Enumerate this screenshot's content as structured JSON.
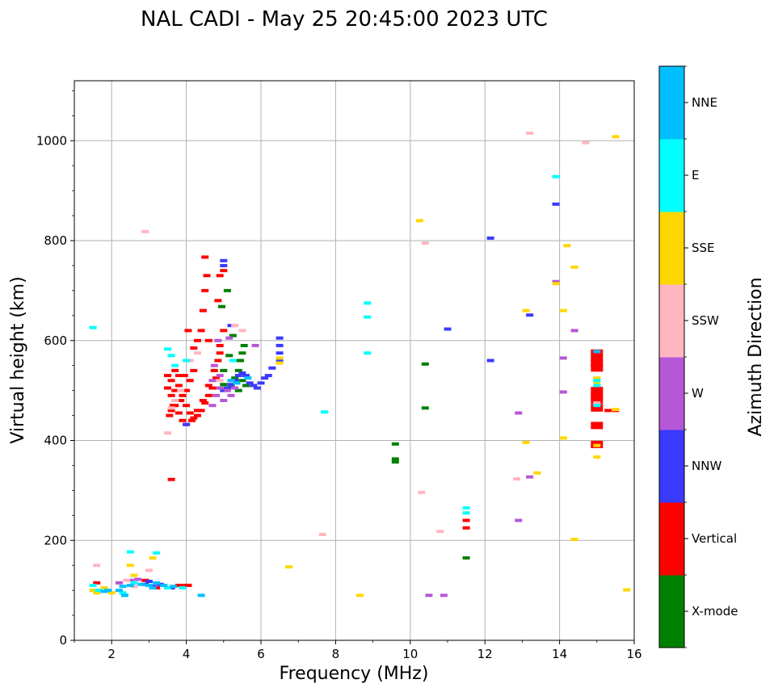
{
  "chart_data": {
    "type": "scatter",
    "title": "NAL CADI - May 25 20:45:00 2023 UTC",
    "xlabel": "Frequency (MHz)",
    "ylabel": "Virtual height (km)",
    "xlim": [
      1,
      16
    ],
    "ylim": [
      0,
      1120
    ],
    "x_ticks": [
      2,
      4,
      6,
      8,
      10,
      12,
      14,
      16
    ],
    "y_ticks": [
      0,
      200,
      400,
      600,
      800,
      1000
    ],
    "grid": true,
    "colorbar": {
      "label": "Azimuth Direction",
      "categories": [
        "X-mode",
        "Vertical",
        "NNW",
        "W",
        "SSW",
        "SSE",
        "E",
        "NNE"
      ],
      "colors": [
        "#008000",
        "#ff0000",
        "#3a3aff",
        "#b657d6",
        "#ffb6c1",
        "#ffd700",
        "#00ffff",
        "#00bfff"
      ]
    },
    "series": [
      {
        "name": "X-mode",
        "points": [
          [
            4.9,
            505
          ],
          [
            5.0,
            512
          ],
          [
            5.2,
            508
          ],
          [
            5.3,
            525
          ],
          [
            5.4,
            540
          ],
          [
            5.45,
            560
          ],
          [
            5.5,
            575
          ],
          [
            5.3,
            560
          ],
          [
            5.55,
            590
          ],
          [
            5.6,
            510
          ],
          [
            4.95,
            668
          ],
          [
            5.1,
            700
          ],
          [
            5.0,
            540
          ],
          [
            5.25,
            610
          ],
          [
            9.6,
            393
          ],
          [
            9.6,
            363
          ],
          [
            9.6,
            357
          ],
          [
            10.4,
            553
          ],
          [
            10.4,
            465
          ],
          [
            11.5,
            165
          ],
          [
            5.5,
            520
          ],
          [
            5.15,
            570
          ],
          [
            5.4,
            500
          ]
        ]
      },
      {
        "name": "Vertical",
        "points": [
          [
            3.6,
            520
          ],
          [
            3.7,
            540
          ],
          [
            3.8,
            510
          ],
          [
            3.9,
            490
          ],
          [
            4.0,
            470
          ],
          [
            4.1,
            455
          ],
          [
            4.2,
            445
          ],
          [
            4.3,
            450
          ],
          [
            4.4,
            460
          ],
          [
            4.5,
            475
          ],
          [
            4.6,
            490
          ],
          [
            4.7,
            505
          ],
          [
            4.8,
            525
          ],
          [
            4.85,
            560
          ],
          [
            4.9,
            590
          ],
          [
            3.5,
            505
          ],
          [
            3.6,
            490
          ],
          [
            3.7,
            470
          ],
          [
            3.8,
            455
          ],
          [
            3.9,
            440
          ],
          [
            4.0,
            432
          ],
          [
            4.15,
            440
          ],
          [
            4.3,
            460
          ],
          [
            4.45,
            480
          ],
          [
            4.6,
            510
          ],
          [
            4.75,
            540
          ],
          [
            4.9,
            575
          ],
          [
            3.5,
            530
          ],
          [
            3.7,
            500
          ],
          [
            3.85,
            480
          ],
          [
            4.0,
            500
          ],
          [
            4.1,
            520
          ],
          [
            4.2,
            540
          ],
          [
            4.3,
            600
          ],
          [
            4.4,
            620
          ],
          [
            4.45,
            660
          ],
          [
            4.5,
            700
          ],
          [
            4.55,
            730
          ],
          [
            4.6,
            600
          ],
          [
            3.55,
            450
          ],
          [
            3.65,
            470
          ],
          [
            3.8,
            530
          ],
          [
            3.95,
            530
          ],
          [
            4.05,
            620
          ],
          [
            4.5,
            767
          ],
          [
            4.85,
            680
          ],
          [
            4.9,
            730
          ],
          [
            5.0,
            740
          ],
          [
            5.0,
            620
          ],
          [
            4.2,
            585
          ],
          [
            3.6,
            460
          ],
          [
            3.6,
            322
          ],
          [
            4.0,
            110
          ],
          [
            4.05,
            110
          ],
          [
            3.8,
            110
          ],
          [
            15.0,
            575
          ],
          [
            15.0,
            565
          ],
          [
            15.0,
            555
          ],
          [
            15.0,
            545
          ],
          [
            15.0,
            500
          ],
          [
            15.0,
            490
          ],
          [
            15.0,
            480
          ],
          [
            15.0,
            465
          ],
          [
            15.0,
            430
          ],
          [
            15.0,
            392
          ],
          [
            15.3,
            460
          ],
          [
            15.5,
            460
          ],
          [
            11.5,
            240
          ],
          [
            11.5,
            225
          ],
          [
            1.6,
            115
          ],
          [
            2.9,
            120
          ],
          [
            3.2,
            105
          ]
        ]
      },
      {
        "name": "NNW",
        "points": [
          [
            5.0,
            500
          ],
          [
            5.1,
            505
          ],
          [
            5.2,
            512
          ],
          [
            5.3,
            520
          ],
          [
            5.4,
            530
          ],
          [
            5.5,
            535
          ],
          [
            5.6,
            530
          ],
          [
            5.7,
            515
          ],
          [
            5.8,
            510
          ],
          [
            5.9,
            505
          ],
          [
            6.0,
            515
          ],
          [
            6.1,
            525
          ],
          [
            6.2,
            530
          ],
          [
            6.3,
            545
          ],
          [
            6.5,
            560
          ],
          [
            6.5,
            575
          ],
          [
            6.5,
            590
          ],
          [
            6.5,
            605
          ],
          [
            5.0,
            760
          ],
          [
            5.0,
            750
          ],
          [
            5.2,
            630
          ],
          [
            4.0,
            432
          ],
          [
            11.0,
            623
          ],
          [
            12.15,
            805
          ],
          [
            12.15,
            560
          ],
          [
            13.9,
            873
          ],
          [
            13.2,
            651
          ],
          [
            3.0,
            118
          ],
          [
            2.9,
            112
          ],
          [
            3.1,
            108
          ],
          [
            3.3,
            112
          ],
          [
            3.6,
            105
          ]
        ]
      },
      {
        "name": "W",
        "points": [
          [
            4.7,
            470
          ],
          [
            4.8,
            490
          ],
          [
            4.9,
            505
          ],
          [
            5.0,
            480
          ],
          [
            5.1,
            500
          ],
          [
            5.2,
            490
          ],
          [
            4.7,
            520
          ],
          [
            4.75,
            550
          ],
          [
            4.85,
            600
          ],
          [
            5.2,
            520
          ],
          [
            5.3,
            505
          ],
          [
            4.9,
            530
          ],
          [
            5.15,
            605
          ],
          [
            5.85,
            590
          ],
          [
            13.9,
            718
          ],
          [
            14.1,
            565
          ],
          [
            14.1,
            497
          ],
          [
            14.4,
            620
          ],
          [
            12.9,
            455
          ],
          [
            12.9,
            240
          ],
          [
            13.2,
            327
          ],
          [
            10.5,
            90
          ],
          [
            10.9,
            90
          ],
          [
            2.2,
            115
          ],
          [
            2.5,
            120
          ],
          [
            2.7,
            122
          ]
        ]
      },
      {
        "name": "SSW",
        "points": [
          [
            3.5,
            415
          ],
          [
            3.6,
            465
          ],
          [
            3.7,
            480
          ],
          [
            3.85,
            500
          ],
          [
            4.1,
            560
          ],
          [
            4.3,
            575
          ],
          [
            4.9,
            520
          ],
          [
            5.3,
            630
          ],
          [
            5.5,
            620
          ],
          [
            2.9,
            818
          ],
          [
            10.4,
            795
          ],
          [
            10.3,
            296
          ],
          [
            10.8,
            218
          ],
          [
            7.65,
            212
          ],
          [
            13.2,
            1015
          ],
          [
            14.7,
            996
          ],
          [
            12.85,
            323
          ],
          [
            1.6,
            150
          ],
          [
            2.4,
            120
          ],
          [
            2.6,
            108
          ],
          [
            3.0,
            140
          ],
          [
            15.0,
            475
          ]
        ]
      },
      {
        "name": "SSE",
        "points": [
          [
            6.5,
            565
          ],
          [
            6.5,
            555
          ],
          [
            13.1,
            660
          ],
          [
            13.9,
            714
          ],
          [
            14.1,
            660
          ],
          [
            14.1,
            405
          ],
          [
            14.2,
            790
          ],
          [
            14.4,
            747
          ],
          [
            13.1,
            396
          ],
          [
            13.4,
            335
          ],
          [
            14.4,
            202
          ],
          [
            15.5,
            1008
          ],
          [
            15.5,
            462
          ],
          [
            15.0,
            525
          ],
          [
            15.0,
            515
          ],
          [
            15.0,
            367
          ],
          [
            15.0,
            390
          ],
          [
            15.8,
            101
          ],
          [
            8.65,
            90
          ],
          [
            6.75,
            147
          ],
          [
            10.25,
            840
          ],
          [
            1.5,
            100
          ],
          [
            1.6,
            95
          ],
          [
            1.8,
            105
          ],
          [
            2.0,
            95
          ],
          [
            2.5,
            150
          ],
          [
            2.6,
            130
          ],
          [
            3.1,
            165
          ]
        ]
      },
      {
        "name": "E",
        "points": [
          [
            3.5,
            583
          ],
          [
            3.6,
            570
          ],
          [
            3.7,
            550
          ],
          [
            4.0,
            560
          ],
          [
            5.25,
            560
          ],
          [
            8.85,
            675
          ],
          [
            8.85,
            647
          ],
          [
            8.85,
            575
          ],
          [
            7.7,
            457
          ],
          [
            13.9,
            928
          ],
          [
            11.5,
            265
          ],
          [
            11.5,
            255
          ],
          [
            15.0,
            520
          ],
          [
            15.0,
            510
          ],
          [
            15.0,
            470
          ],
          [
            1.5,
            626
          ],
          [
            1.5,
            110
          ],
          [
            1.65,
            100
          ],
          [
            2.3,
            95
          ],
          [
            2.6,
            115
          ],
          [
            3.2,
            175
          ],
          [
            2.5,
            177
          ],
          [
            3.5,
            105
          ],
          [
            3.9,
            105
          ]
        ]
      },
      {
        "name": "NNE",
        "points": [
          [
            5.2,
            520
          ],
          [
            5.35,
            515
          ],
          [
            5.65,
            525
          ],
          [
            2.3,
            108
          ],
          [
            2.5,
            110
          ],
          [
            2.8,
            112
          ],
          [
            3.0,
            110
          ],
          [
            3.1,
            105
          ],
          [
            3.2,
            115
          ],
          [
            3.4,
            110
          ],
          [
            3.65,
            108
          ],
          [
            4.4,
            90
          ],
          [
            2.2,
            100
          ],
          [
            1.9,
            100
          ],
          [
            1.8,
            98
          ],
          [
            2.35,
            90
          ],
          [
            15.0,
            578
          ]
        ]
      }
    ]
  }
}
